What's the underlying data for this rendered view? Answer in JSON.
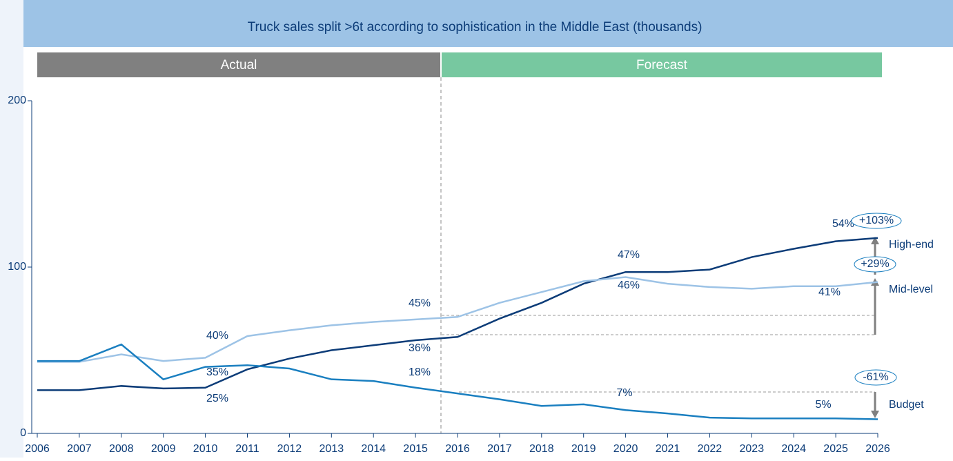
{
  "chart_data": {
    "type": "line",
    "title": "Truck sales split >6t according to sophistication in the Middle East (thousands)",
    "phases": [
      "Actual",
      "Forecast"
    ],
    "x": [
      2006,
      2007,
      2008,
      2009,
      2010,
      2011,
      2012,
      2013,
      2014,
      2015,
      2016,
      2017,
      2018,
      2019,
      2020,
      2021,
      2022,
      2023,
      2024,
      2025,
      2026
    ],
    "xlim": [
      2006,
      2026
    ],
    "xticks": [
      2006,
      2007,
      2008,
      2009,
      2010,
      2011,
      2012,
      2013,
      2014,
      2015,
      2016,
      2017,
      2018,
      2019,
      2020,
      2021,
      2022,
      2023,
      2024,
      2025,
      2026
    ],
    "ylim": [
      0,
      200
    ],
    "yticks": [
      0,
      100,
      200
    ],
    "series": [
      {
        "name": "High-end",
        "color": "#0c3c78",
        "values": [
          26,
          26,
          28.5,
          27,
          27.5,
          38.5,
          45,
          50,
          53,
          56,
          58,
          69,
          78.5,
          90,
          97,
          97,
          98.5,
          106,
          111,
          115.5,
          117.5
        ]
      },
      {
        "name": "Mid-level",
        "color": "#9dc3e6",
        "values": [
          43,
          43,
          47.5,
          43.5,
          45.5,
          58.5,
          62,
          65,
          67,
          68.5,
          70,
          78.5,
          85,
          91.5,
          94,
          90,
          88,
          87,
          88.5,
          88.5,
          91
        ]
      },
      {
        "name": "Budget",
        "color": "#1a7fc0",
        "values": [
          43.5,
          43.5,
          53.5,
          32.5,
          40,
          41,
          39,
          32.5,
          31.5,
          27.5,
          24,
          20.5,
          16.5,
          17.5,
          14,
          12,
          9.5,
          9,
          9,
          9,
          8.5
        ]
      }
    ],
    "annotations": [
      "40%",
      "45%",
      "47%",
      "54%",
      "35%",
      "36%",
      "46%",
      "41%",
      "25%",
      "18%",
      "7%",
      "5%",
      "+103%",
      "+29%",
      "-61%"
    ]
  }
}
